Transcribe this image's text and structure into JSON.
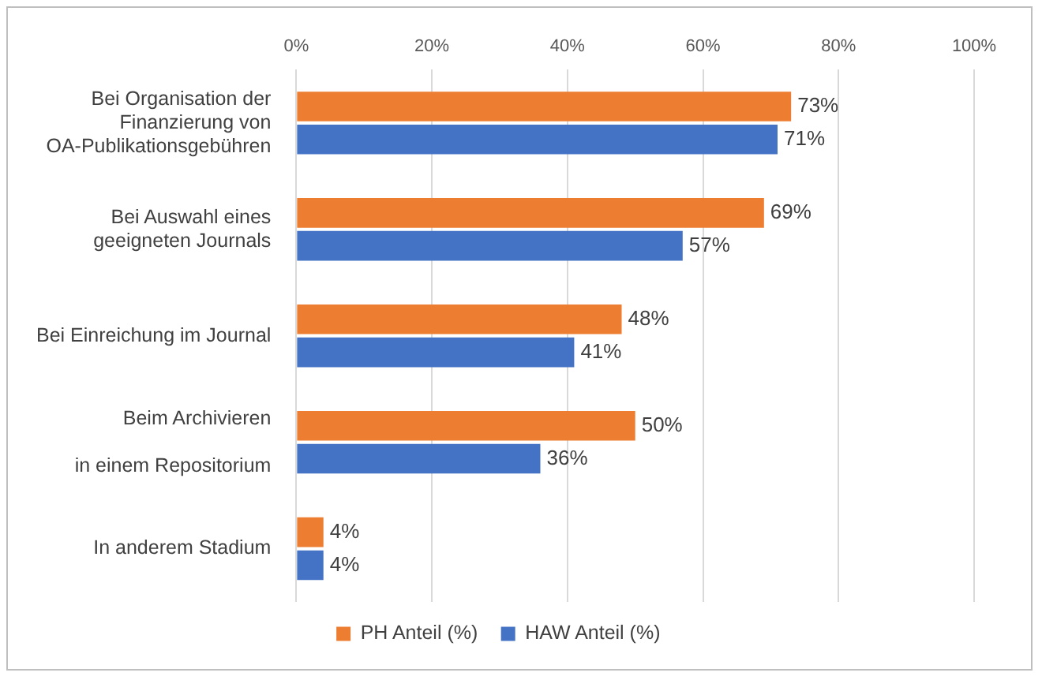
{
  "chart_data": {
    "type": "bar",
    "orientation": "horizontal",
    "categories": [
      "Bei Organisation der\nFinanzierung von\nOA-Publikationsgebühren",
      "Bei Auswahl eines\ngeeigneten Journals",
      "Bei Einreichung im Journal",
      "Beim Archivieren\n\nin einem Repositorium",
      "In anderem Stadium"
    ],
    "series": [
      {
        "name": "PH Anteil (%)",
        "color": "#ed7d31",
        "values": [
          73,
          69,
          48,
          50,
          4
        ],
        "value_labels": [
          "73%",
          "69%",
          "48%",
          "50%",
          "4%"
        ]
      },
      {
        "name": "HAW Anteil (%)",
        "color": "#4472c4",
        "values": [
          71,
          57,
          41,
          36,
          4
        ],
        "value_labels": [
          "71%",
          "57%",
          "41%",
          "36%",
          "4%"
        ]
      }
    ],
    "xlim": [
      0,
      100
    ],
    "xticks": [
      {
        "value": 0,
        "label": "0%"
      },
      {
        "value": 20,
        "label": "20%"
      },
      {
        "value": 40,
        "label": "40%"
      },
      {
        "value": 60,
        "label": "60%"
      },
      {
        "value": 80,
        "label": "80%"
      },
      {
        "value": 100,
        "label": "100%"
      }
    ],
    "grid": "x",
    "legend": "bottom"
  }
}
